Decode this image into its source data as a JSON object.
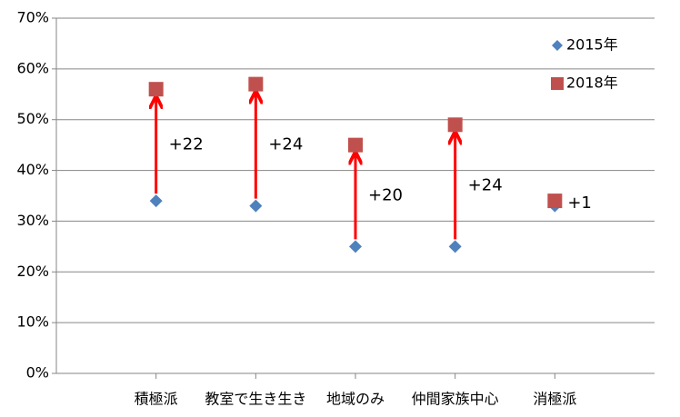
{
  "chart_data": {
    "type": "dot-arrow",
    "categories": [
      "積極派",
      "教室で生き生き",
      "地域のみ",
      "仲間家族中心",
      "消極派"
    ],
    "series": [
      {
        "name": "2015年",
        "color": "#4f81bd",
        "marker": "diamond",
        "values": [
          34,
          33,
          25,
          25,
          33
        ]
      },
      {
        "name": "2018年",
        "color": "#c0504d",
        "marker": "square",
        "values": [
          56,
          57,
          45,
          49,
          34
        ]
      }
    ],
    "annotations": [
      "+22",
      "+24",
      "+20",
      "+24",
      "+1"
    ],
    "arrow_color": "#ff0000",
    "ylim": [
      0,
      70
    ],
    "yticks": [
      {
        "value": 0,
        "label": "0%"
      },
      {
        "value": 10,
        "label": "10%"
      },
      {
        "value": 20,
        "label": "20%"
      },
      {
        "value": 30,
        "label": "30%"
      },
      {
        "value": 40,
        "label": "40%"
      },
      {
        "value": 50,
        "label": "50%"
      },
      {
        "value": 60,
        "label": "60%"
      },
      {
        "value": 70,
        "label": "70%"
      }
    ],
    "grid": true
  }
}
